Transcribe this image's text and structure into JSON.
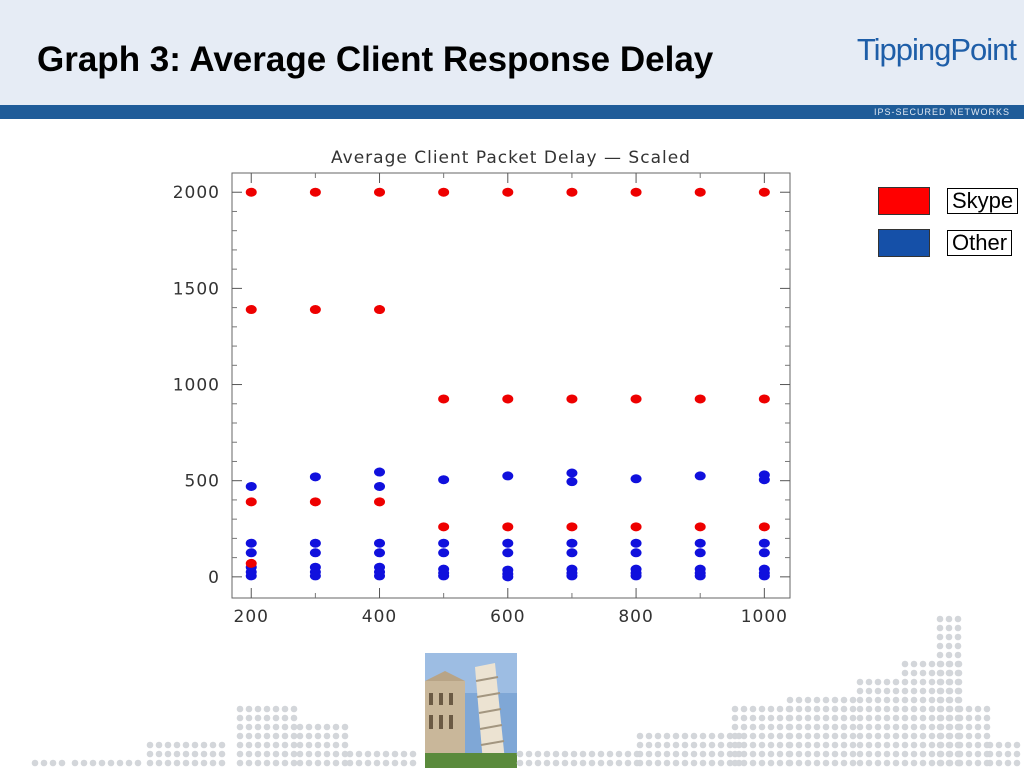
{
  "slide": {
    "title": "Graph 3: Average Client Response Delay",
    "logo_text": "TippingPoint",
    "tagline": "IPS-SECURED NETWORKS"
  },
  "colors": {
    "header_bg": "#e6ecf5",
    "band": "#1f5c99",
    "skype": "#ee0000",
    "other": "#1010dd",
    "legend_skype": "#ff0000",
    "legend_other": "#1550a8"
  },
  "legend": [
    {
      "label": "Skype",
      "color": "#ff0000"
    },
    {
      "label": "Other",
      "color": "#1550a8"
    }
  ],
  "chart_data": {
    "type": "scatter",
    "title": "Average Client Packet Delay — Scaled",
    "xlabel": "",
    "ylabel": "",
    "xlim": [
      170,
      1040
    ],
    "ylim": [
      -110,
      2100
    ],
    "x_ticks": [
      200,
      400,
      600,
      800,
      1000
    ],
    "y_ticks": [
      0,
      500,
      1000,
      1500,
      2000
    ],
    "grid": false,
    "series": [
      {
        "name": "Skype",
        "color": "#ee0000",
        "points": [
          [
            200,
            2000
          ],
          [
            300,
            2000
          ],
          [
            400,
            2000
          ],
          [
            500,
            2000
          ],
          [
            600,
            2000
          ],
          [
            700,
            2000
          ],
          [
            800,
            2000
          ],
          [
            900,
            2000
          ],
          [
            1000,
            2000
          ],
          [
            200,
            1390
          ],
          [
            300,
            1390
          ],
          [
            400,
            1390
          ],
          [
            500,
            925
          ],
          [
            600,
            925
          ],
          [
            700,
            925
          ],
          [
            800,
            925
          ],
          [
            900,
            925
          ],
          [
            1000,
            925
          ],
          [
            200,
            390
          ],
          [
            300,
            390
          ],
          [
            400,
            390
          ],
          [
            500,
            260
          ],
          [
            600,
            260
          ],
          [
            700,
            260
          ],
          [
            800,
            260
          ],
          [
            900,
            260
          ],
          [
            1000,
            260
          ],
          [
            200,
            70
          ]
        ]
      },
      {
        "name": "Other",
        "color": "#1010dd",
        "points": [
          [
            200,
            470
          ],
          [
            300,
            520
          ],
          [
            400,
            545
          ],
          [
            400,
            470
          ],
          [
            500,
            505
          ],
          [
            600,
            525
          ],
          [
            700,
            540
          ],
          [
            700,
            495
          ],
          [
            800,
            510
          ],
          [
            900,
            525
          ],
          [
            1000,
            530
          ],
          [
            1000,
            505
          ],
          [
            200,
            175
          ],
          [
            300,
            175
          ],
          [
            400,
            175
          ],
          [
            500,
            175
          ],
          [
            600,
            175
          ],
          [
            700,
            175
          ],
          [
            800,
            175
          ],
          [
            900,
            175
          ],
          [
            1000,
            175
          ],
          [
            200,
            125
          ],
          [
            300,
            125
          ],
          [
            400,
            125
          ],
          [
            500,
            125
          ],
          [
            600,
            125
          ],
          [
            700,
            125
          ],
          [
            800,
            125
          ],
          [
            900,
            125
          ],
          [
            1000,
            125
          ],
          [
            200,
            50
          ],
          [
            300,
            50
          ],
          [
            400,
            50
          ],
          [
            500,
            40
          ],
          [
            600,
            35
          ],
          [
            700,
            40
          ],
          [
            800,
            40
          ],
          [
            900,
            40
          ],
          [
            1000,
            40
          ],
          [
            200,
            25
          ],
          [
            300,
            25
          ],
          [
            400,
            25
          ],
          [
            500,
            20
          ],
          [
            600,
            15
          ],
          [
            700,
            20
          ],
          [
            800,
            20
          ],
          [
            900,
            20
          ],
          [
            1000,
            20
          ],
          [
            200,
            5
          ],
          [
            300,
            5
          ],
          [
            400,
            5
          ],
          [
            500,
            5
          ],
          [
            600,
            0
          ],
          [
            700,
            5
          ],
          [
            800,
            5
          ],
          [
            900,
            5
          ],
          [
            1000,
            5
          ]
        ]
      }
    ]
  }
}
